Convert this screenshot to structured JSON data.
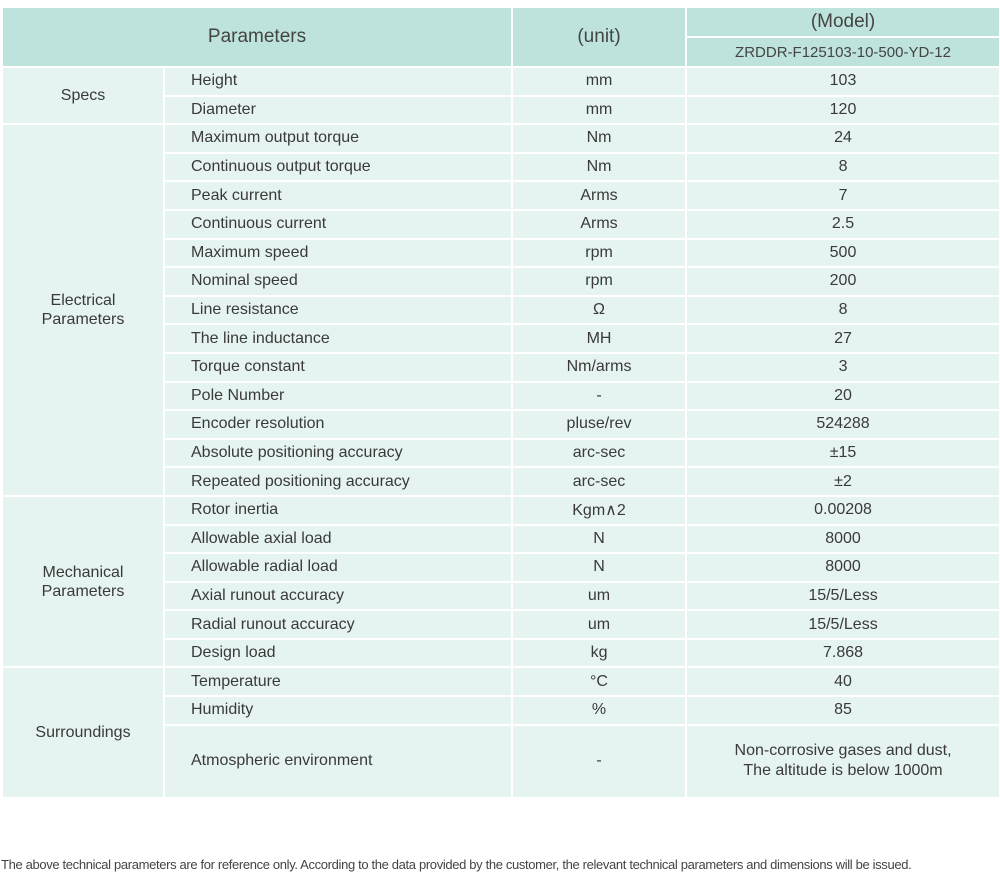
{
  "header": {
    "parameters": "Parameters",
    "unit": "(unit)",
    "model": "(Model)",
    "model_number": "ZRDDR-F125103-10-500-YD-12"
  },
  "groups": [
    {
      "label": "Specs",
      "rows": [
        {
          "name": "Height",
          "unit": "mm",
          "value": "103"
        },
        {
          "name": "Diameter",
          "unit": "mm",
          "value": "120"
        }
      ]
    },
    {
      "label": "Electrical Parameters",
      "rows": [
        {
          "name": "Maximum output torque",
          "unit": "Nm",
          "value": "24"
        },
        {
          "name": "Continuous output torque",
          "unit": "Nm",
          "value": "8"
        },
        {
          "name": "Peak current",
          "unit": "Arms",
          "value": "7"
        },
        {
          "name": "Continuous current",
          "unit": "Arms",
          "value": "2.5"
        },
        {
          "name": "Maximum speed",
          "unit": "rpm",
          "value": "500"
        },
        {
          "name": "Nominal speed",
          "unit": "rpm",
          "value": "200"
        },
        {
          "name": "Line resistance",
          "unit": "Ω",
          "value": "8"
        },
        {
          "name": "The line inductance",
          "unit": "MH",
          "value": "27"
        },
        {
          "name": "Torque constant",
          "unit": "Nm/arms",
          "value": "3"
        },
        {
          "name": "Pole Number",
          "unit": "-",
          "value": "20"
        },
        {
          "name": "Encoder resolution",
          "unit": "pluse/rev",
          "value": "524288"
        },
        {
          "name": "Absolute positioning accuracy",
          "unit": "arc-sec",
          "value": "±15"
        },
        {
          "name": "Repeated positioning accuracy",
          "unit": "arc-sec",
          "value": "±2"
        }
      ]
    },
    {
      "label": "Mechanical Parameters",
      "rows": [
        {
          "name": "Rotor inertia",
          "unit": "Kgm∧2",
          "value": "0.00208"
        },
        {
          "name": "Allowable axial load",
          "unit": "N",
          "value": "8000"
        },
        {
          "name": "Allowable radial load",
          "unit": "N",
          "value": "8000"
        },
        {
          "name": "Axial runout accuracy",
          "unit": "um",
          "value": "15/5/Less"
        },
        {
          "name": "Radial runout accuracy",
          "unit": "um",
          "value": "15/5/Less"
        },
        {
          "name": "Design load",
          "unit": "kg",
          "value": "7.868"
        }
      ]
    },
    {
      "label": "Surroundings",
      "rows": [
        {
          "name": "Temperature",
          "unit": "°C",
          "value": "40"
        },
        {
          "name": "Humidity",
          "unit": "%",
          "value": "85"
        },
        {
          "name": "Atmospheric environment",
          "unit": "-",
          "value": "Non-corrosive gases and dust,\nThe altitude is below 1000m",
          "tall": true
        }
      ]
    }
  ],
  "footnote": "The above technical parameters are for reference only. According to the data provided by the customer, the relevant technical parameters and dimensions will be issued.",
  "colors": {
    "header_bg": "#bde3dc",
    "body_bg": "#e5f3f1",
    "border": "#ffffff"
  }
}
